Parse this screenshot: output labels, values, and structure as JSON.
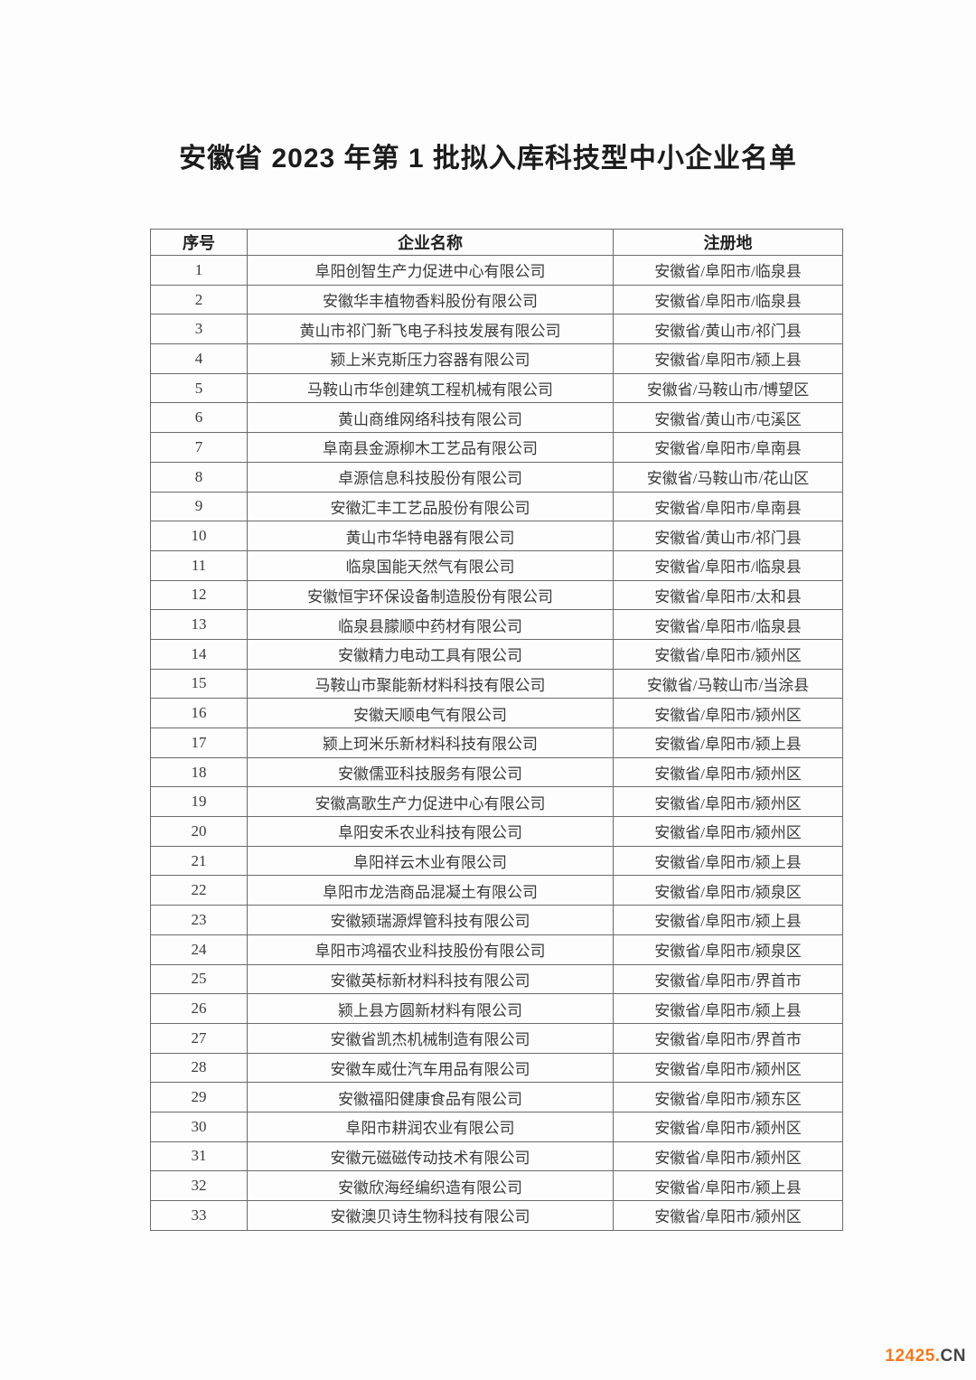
{
  "page": {
    "title": "安徽省 2023 年第 1 批拟入库科技型中小企业名单"
  },
  "watermark": {
    "primary": "12425.",
    "secondary": "CN",
    "primary_color": "#f2791e",
    "secondary_color": "#454545"
  },
  "table": {
    "headers": [
      "序号",
      "企业名称",
      "注册地"
    ],
    "rows": [
      {
        "index": "1",
        "company": "阜阳创智生产力促进中心有限公司",
        "location": "安徽省/阜阳市/临泉县"
      },
      {
        "index": "2",
        "company": "安徽华丰植物香料股份有限公司",
        "location": "安徽省/阜阳市/临泉县"
      },
      {
        "index": "3",
        "company": "黄山市祁门新飞电子科技发展有限公司",
        "location": "安徽省/黄山市/祁门县"
      },
      {
        "index": "4",
        "company": "颍上米克斯压力容器有限公司",
        "location": "安徽省/阜阳市/颍上县"
      },
      {
        "index": "5",
        "company": "马鞍山市华创建筑工程机械有限公司",
        "location": "安徽省/马鞍山市/博望区"
      },
      {
        "index": "6",
        "company": "黄山商维网络科技有限公司",
        "location": "安徽省/黄山市/屯溪区"
      },
      {
        "index": "7",
        "company": "阜南县金源柳木工艺品有限公司",
        "location": "安徽省/阜阳市/阜南县"
      },
      {
        "index": "8",
        "company": "卓源信息科技股份有限公司",
        "location": "安徽省/马鞍山市/花山区"
      },
      {
        "index": "9",
        "company": "安徽汇丰工艺品股份有限公司",
        "location": "安徽省/阜阳市/阜南县"
      },
      {
        "index": "10",
        "company": "黄山市华特电器有限公司",
        "location": "安徽省/黄山市/祁门县"
      },
      {
        "index": "11",
        "company": "临泉国能天然气有限公司",
        "location": "安徽省/阜阳市/临泉县"
      },
      {
        "index": "12",
        "company": "安徽恒宇环保设备制造股份有限公司",
        "location": "安徽省/阜阳市/太和县"
      },
      {
        "index": "13",
        "company": "临泉县朦顺中药材有限公司",
        "location": "安徽省/阜阳市/临泉县"
      },
      {
        "index": "14",
        "company": "安徽精力电动工具有限公司",
        "location": "安徽省/阜阳市/颍州区"
      },
      {
        "index": "15",
        "company": "马鞍山市聚能新材料科技有限公司",
        "location": "安徽省/马鞍山市/当涂县"
      },
      {
        "index": "16",
        "company": "安徽天顺电气有限公司",
        "location": "安徽省/阜阳市/颍州区"
      },
      {
        "index": "17",
        "company": "颍上珂米乐新材料科技有限公司",
        "location": "安徽省/阜阳市/颍上县"
      },
      {
        "index": "18",
        "company": "安徽儒亚科技服务有限公司",
        "location": "安徽省/阜阳市/颍州区"
      },
      {
        "index": "19",
        "company": "安徽高歌生产力促进中心有限公司",
        "location": "安徽省/阜阳市/颍州区"
      },
      {
        "index": "20",
        "company": "阜阳安禾农业科技有限公司",
        "location": "安徽省/阜阳市/颍州区"
      },
      {
        "index": "21",
        "company": "阜阳祥云木业有限公司",
        "location": "安徽省/阜阳市/颍上县"
      },
      {
        "index": "22",
        "company": "阜阳市龙浩商品混凝土有限公司",
        "location": "安徽省/阜阳市/颍泉区"
      },
      {
        "index": "23",
        "company": "安徽颍瑞源焊管科技有限公司",
        "location": "安徽省/阜阳市/颍上县"
      },
      {
        "index": "24",
        "company": "阜阳市鸿福农业科技股份有限公司",
        "location": "安徽省/阜阳市/颍泉区"
      },
      {
        "index": "25",
        "company": "安徽英标新材料科技有限公司",
        "location": "安徽省/阜阳市/界首市"
      },
      {
        "index": "26",
        "company": "颍上县方圆新材料有限公司",
        "location": "安徽省/阜阳市/颍上县"
      },
      {
        "index": "27",
        "company": "安徽省凯杰机械制造有限公司",
        "location": "安徽省/阜阳市/界首市"
      },
      {
        "index": "28",
        "company": "安徽车威仕汽车用品有限公司",
        "location": "安徽省/阜阳市/颍州区"
      },
      {
        "index": "29",
        "company": "安徽福阳健康食品有限公司",
        "location": "安徽省/阜阳市/颍东区"
      },
      {
        "index": "30",
        "company": "阜阳市耕润农业有限公司",
        "location": "安徽省/阜阳市/颍州区"
      },
      {
        "index": "31",
        "company": "安徽元磁磁传动技术有限公司",
        "location": "安徽省/阜阳市/颍州区"
      },
      {
        "index": "32",
        "company": "安徽欣海经编织造有限公司",
        "location": "安徽省/阜阳市/颍上县"
      },
      {
        "index": "33",
        "company": "安徽澳贝诗生物科技有限公司",
        "location": "安徽省/阜阳市/颍州区"
      }
    ]
  }
}
